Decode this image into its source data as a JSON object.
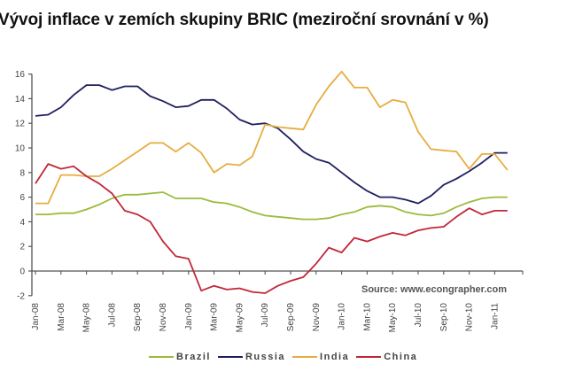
{
  "title": "Vývoj inflace v zemích skupiny BRIC (meziroční srovnání v %)",
  "source": "Source: www.econgrapher.com",
  "chart_data": {
    "type": "line",
    "title": "Vývoj inflace v zemích skupiny BRIC (meziroční srovnání v %)",
    "xlabel": "",
    "ylabel": "",
    "ylim": [
      -2,
      16
    ],
    "yticks": [
      -2,
      0,
      2,
      4,
      6,
      8,
      10,
      12,
      14,
      16
    ],
    "grid": false,
    "legend_position": "bottom",
    "x": [
      "Jan-08",
      "Feb-08",
      "Mar-08",
      "Apr-08",
      "May-08",
      "Jun-08",
      "Jul-08",
      "Aug-08",
      "Sep-08",
      "Oct-08",
      "Nov-08",
      "Dec-08",
      "Jan-09",
      "Feb-09",
      "Mar-09",
      "Apr-09",
      "May-09",
      "Jun-09",
      "Jul-09",
      "Aug-09",
      "Sep-09",
      "Oct-09",
      "Nov-09",
      "Dec-09",
      "Jan-10",
      "Feb-10",
      "Mar-10",
      "Apr-10",
      "May-10",
      "Jun-10",
      "Jul-10",
      "Aug-10",
      "Sep-10",
      "Oct-10",
      "Nov-10",
      "Dec-10",
      "Jan-11",
      "Feb-11"
    ],
    "xtick_labels": [
      "Jan-08",
      "Mar-08",
      "May-08",
      "Jul-08",
      "Sep-08",
      "Nov-08",
      "Jan-09",
      "Mar-09",
      "May-09",
      "Jul-09",
      "Sep-09",
      "Nov-09",
      "Jan-10",
      "Mar-10",
      "May-10",
      "Jul-10",
      "Sep-10",
      "Nov-10",
      "Jan-11"
    ],
    "series": [
      {
        "name": "Brazil",
        "color": "#9bbb3c",
        "values": [
          4.6,
          4.6,
          4.7,
          4.7,
          5.0,
          5.4,
          5.9,
          6.2,
          6.2,
          6.3,
          6.4,
          5.9,
          5.9,
          5.9,
          5.6,
          5.5,
          5.2,
          4.8,
          4.5,
          4.4,
          4.3,
          4.2,
          4.2,
          4.3,
          4.6,
          4.8,
          5.2,
          5.3,
          5.2,
          4.8,
          4.6,
          4.5,
          4.7,
          5.2,
          5.6,
          5.9,
          6.0,
          6.0
        ]
      },
      {
        "name": "Russia",
        "color": "#1f1f5e",
        "values": [
          12.6,
          12.7,
          13.3,
          14.3,
          15.1,
          15.1,
          14.7,
          15.0,
          15.0,
          14.2,
          13.8,
          13.3,
          13.4,
          13.9,
          13.9,
          13.2,
          12.3,
          11.9,
          12.0,
          11.6,
          10.7,
          9.7,
          9.1,
          8.8,
          8.0,
          7.2,
          6.5,
          6.0,
          6.0,
          5.8,
          5.5,
          6.1,
          7.0,
          7.5,
          8.1,
          8.8,
          9.6,
          9.6
        ]
      },
      {
        "name": "India",
        "color": "#e6ad3f",
        "values": [
          5.5,
          5.5,
          7.8,
          7.8,
          7.7,
          7.7,
          8.3,
          9.0,
          9.7,
          10.4,
          10.4,
          9.7,
          10.4,
          9.6,
          8.0,
          8.7,
          8.6,
          9.3,
          11.9,
          11.7,
          11.6,
          11.5,
          13.5,
          15.0,
          16.2,
          14.9,
          14.9,
          13.3,
          13.9,
          13.7,
          11.3,
          9.9,
          9.8,
          9.7,
          8.3,
          9.5,
          9.5,
          8.2
        ]
      },
      {
        "name": "China",
        "color": "#c0283a",
        "values": [
          7.1,
          8.7,
          8.3,
          8.5,
          7.7,
          7.1,
          6.3,
          4.9,
          4.6,
          4.0,
          2.4,
          1.2,
          1.0,
          -1.6,
          -1.2,
          -1.5,
          -1.4,
          -1.7,
          -1.8,
          -1.2,
          -0.8,
          -0.5,
          0.6,
          1.9,
          1.5,
          2.7,
          2.4,
          2.8,
          3.1,
          2.9,
          3.3,
          3.5,
          3.6,
          4.4,
          5.1,
          4.6,
          4.9,
          4.9
        ]
      }
    ]
  },
  "legend": [
    {
      "name": "Brazil",
      "color": "#9bbb3c"
    },
    {
      "name": "Russia",
      "color": "#1f1f5e"
    },
    {
      "name": "India",
      "color": "#e6ad3f"
    },
    {
      "name": "China",
      "color": "#c0283a"
    }
  ]
}
